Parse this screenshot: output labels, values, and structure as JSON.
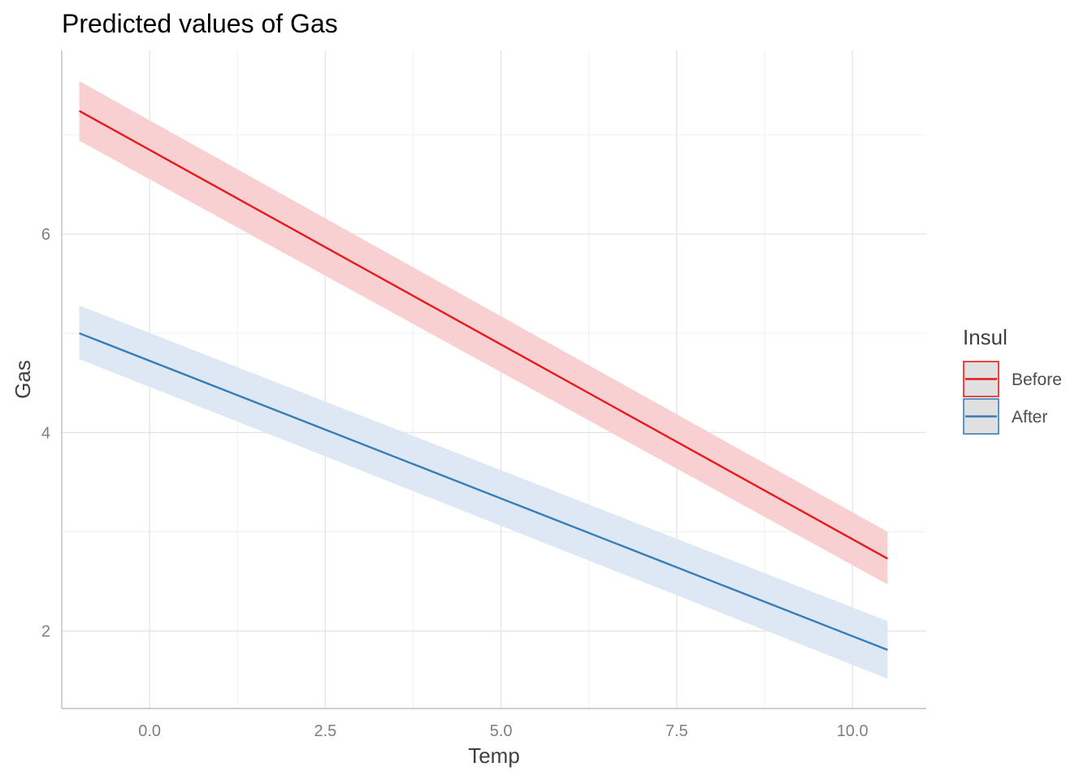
{
  "chart_data": {
    "type": "line",
    "title": "Predicted values of Gas",
    "xlabel": "Temp",
    "ylabel": "Gas",
    "xlim": [
      -1.25,
      11.05
    ],
    "ylim": [
      1.22,
      7.85
    ],
    "x_ticks": [
      0.0,
      2.5,
      5.0,
      7.5,
      10.0
    ],
    "x_tick_labels": [
      "0.0",
      "2.5",
      "5.0",
      "7.5",
      "10.0"
    ],
    "y_ticks": [
      2,
      4,
      6
    ],
    "y_tick_labels": [
      "2",
      "4",
      "6"
    ],
    "grid": true,
    "legend": {
      "title": "Insul",
      "placement": "right"
    },
    "series": [
      {
        "name": "Before",
        "color": "#e41a1c",
        "ribbon_color": "#f8d0d1",
        "x": [
          -1.0,
          10.5
        ],
        "y": [
          7.24,
          2.73
        ],
        "lower": [
          6.94,
          2.47
        ],
        "upper": [
          7.54,
          3.0
        ]
      },
      {
        "name": "After",
        "color": "#377eb8",
        "ribbon_color": "#dde8f4",
        "x": [
          -1.0,
          10.5
        ],
        "y": [
          5.0,
          1.81
        ],
        "lower": [
          4.74,
          1.52
        ],
        "upper": [
          5.28,
          2.1
        ]
      }
    ]
  }
}
